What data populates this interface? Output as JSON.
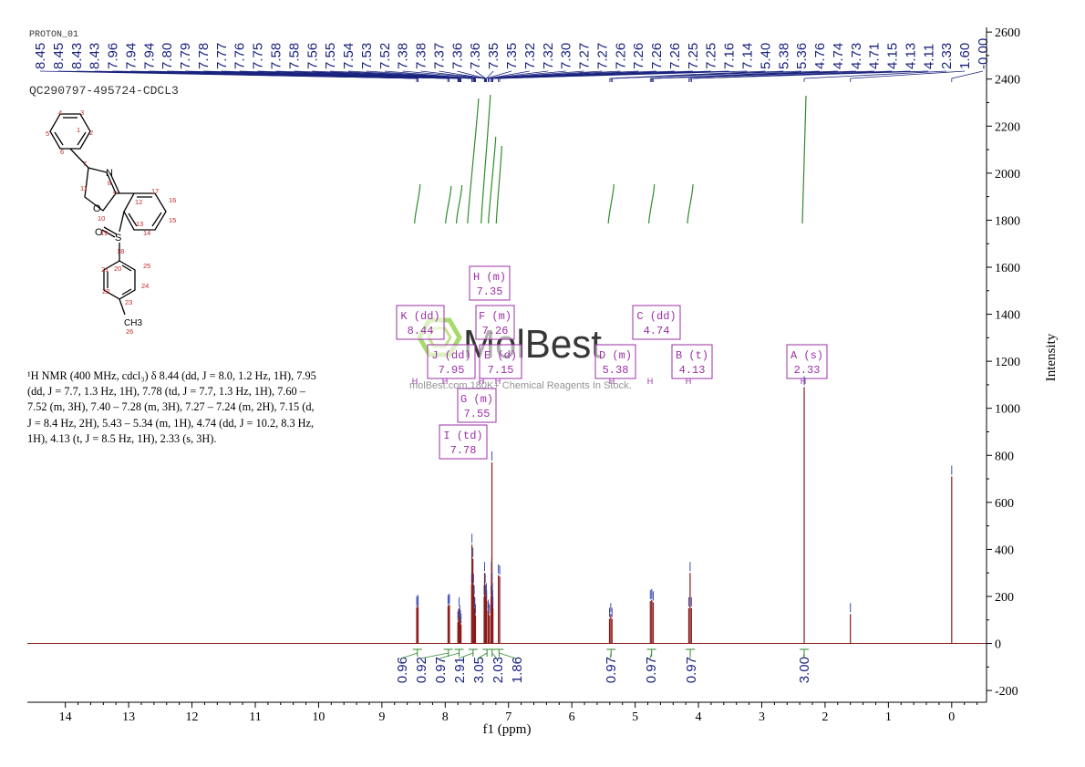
{
  "header": {
    "experiment": "PROTON_01",
    "sample_id": "QC290797-495724-CDCL3"
  },
  "watermark": {
    "brand": "MolBest",
    "tagline": "molBest.com,180K+ Chemical Reagents In Stock."
  },
  "nmr_description": {
    "text": "¹H NMR (400 MHz, cdcl₃) δ 8.44 (dd, J = 8.0, 1.2 Hz, 1H), 7.95 (dd, J = 7.7, 1.3 Hz, 1H), 7.78 (td, J = 7.7, 1.3 Hz, 1H), 7.60 – 7.52 (m, 3H), 7.40 – 7.28 (m, 3H), 7.27 – 7.24 (m, 2H), 7.15 (d, J = 8.4 Hz, 2H), 5.43 – 5.34 (m, 1H), 4.74 (dd, J = 10.2, 8.3 Hz, 1H), 4.13 (t, J = 8.5 Hz, 1H), 2.33 (s, 3H)."
  },
  "structure": {
    "atom_labels": [
      "1",
      "2",
      "3",
      "4",
      "5",
      "6",
      "7",
      "8",
      "9",
      "10",
      "11",
      "12",
      "13",
      "14",
      "15",
      "16",
      "17",
      "18",
      "19",
      "20",
      "21",
      "22",
      "23",
      "24",
      "25",
      "26"
    ],
    "hetero_labels": [
      "N",
      "O",
      "O",
      "S",
      "CH3"
    ]
  },
  "peak_labels": [
    "8.45",
    "8.45",
    "8.43",
    "8.43",
    "7.96",
    "7.94",
    "7.94",
    "7.80",
    "7.79",
    "7.78",
    "7.77",
    "7.76",
    "7.75",
    "7.58",
    "7.58",
    "7.56",
    "7.55",
    "7.54",
    "7.53",
    "7.52",
    "7.38",
    "7.38",
    "7.37",
    "7.36",
    "7.36",
    "7.35",
    "7.35",
    "7.32",
    "7.32",
    "7.30",
    "7.27",
    "7.27",
    "7.26",
    "7.26",
    "7.26",
    "7.26",
    "7.25",
    "7.25",
    "7.16",
    "7.14",
    "5.40",
    "5.38",
    "5.36",
    "4.76",
    "4.74",
    "4.73",
    "4.71",
    "4.15",
    "4.13",
    "4.11",
    "2.33",
    "1.60",
    "-0.00"
  ],
  "multiplets": [
    {
      "letter": "K",
      "mult": "dd",
      "shift": "8.44"
    },
    {
      "letter": "J",
      "mult": "dd",
      "shift": "7.95"
    },
    {
      "letter": "I",
      "mult": "td",
      "shift": "7.78"
    },
    {
      "letter": "G",
      "mult": "m",
      "shift": "7.55"
    },
    {
      "letter": "H",
      "mult": "m",
      "shift": "7.35"
    },
    {
      "letter": "F",
      "mult": "m",
      "shift": "7.26"
    },
    {
      "letter": "E",
      "mult": "d",
      "shift": "7.15"
    },
    {
      "letter": "D",
      "mult": "m",
      "shift": "5.38"
    },
    {
      "letter": "C",
      "mult": "dd",
      "shift": "4.74"
    },
    {
      "letter": "B",
      "mult": "t",
      "shift": "4.13"
    },
    {
      "letter": "A",
      "mult": "s",
      "shift": "2.33"
    }
  ],
  "integrals": [
    {
      "center": 8.44,
      "value": "0.96"
    },
    {
      "center": 7.95,
      "value": "0.92"
    },
    {
      "center": 7.78,
      "value": "0.97"
    },
    {
      "center": 7.56,
      "value": "2.91"
    },
    {
      "center": 7.34,
      "value": "3.05"
    },
    {
      "center": 7.26,
      "value": "2.03"
    },
    {
      "center": 7.15,
      "value": "1.86"
    },
    {
      "center": 5.38,
      "value": "0.97"
    },
    {
      "center": 4.74,
      "value": "0.97"
    },
    {
      "center": 4.13,
      "value": "0.97"
    },
    {
      "center": 2.33,
      "value": "3.00"
    }
  ],
  "chart_data": {
    "type": "line",
    "xlabel": "f1 (ppm)",
    "ylabel": "Intensity",
    "xlim": [
      14.6,
      -0.55
    ],
    "ylim": [
      -250,
      2620
    ],
    "x_ticks": [
      "14",
      "13",
      "12",
      "11",
      "10",
      "9",
      "8",
      "7",
      "6",
      "5",
      "4",
      "3",
      "2",
      "1",
      "0"
    ],
    "y_ticks": [
      "-200",
      "0",
      "200",
      "400",
      "600",
      "800",
      "1000",
      "1200",
      "1400",
      "1600",
      "1800",
      "2000",
      "2200",
      "2400",
      "2600"
    ],
    "spectrum_color": "#8b1a1a",
    "annotation_color": "#9b2fa6",
    "integral_color": "#2e8b2e",
    "label_color": "#1a237e",
    "peaks": [
      {
        "shift": 8.451,
        "height": 150
      },
      {
        "shift": 8.448,
        "height": 155
      },
      {
        "shift": 8.431,
        "height": 160
      },
      {
        "shift": 8.428,
        "height": 150
      },
      {
        "shift": 7.955,
        "height": 160
      },
      {
        "shift": 7.952,
        "height": 155
      },
      {
        "shift": 7.936,
        "height": 165
      },
      {
        "shift": 7.933,
        "height": 160
      },
      {
        "shift": 7.8,
        "height": 90
      },
      {
        "shift": 7.79,
        "height": 100
      },
      {
        "shift": 7.78,
        "height": 150
      },
      {
        "shift": 7.77,
        "height": 115
      },
      {
        "shift": 7.76,
        "height": 95
      },
      {
        "shift": 7.75,
        "height": 80
      },
      {
        "shift": 7.583,
        "height": 250
      },
      {
        "shift": 7.578,
        "height": 420
      },
      {
        "shift": 7.563,
        "height": 360
      },
      {
        "shift": 7.552,
        "height": 250
      },
      {
        "shift": 7.542,
        "height": 200
      },
      {
        "shift": 7.532,
        "height": 150
      },
      {
        "shift": 7.522,
        "height": 120
      },
      {
        "shift": 7.385,
        "height": 200
      },
      {
        "shift": 7.378,
        "height": 300
      },
      {
        "shift": 7.368,
        "height": 250
      },
      {
        "shift": 7.362,
        "height": 200
      },
      {
        "shift": 7.356,
        "height": 200
      },
      {
        "shift": 7.35,
        "height": 210
      },
      {
        "shift": 7.346,
        "height": 180
      },
      {
        "shift": 7.322,
        "height": 140
      },
      {
        "shift": 7.316,
        "height": 130
      },
      {
        "shift": 7.3,
        "height": 120
      },
      {
        "shift": 7.275,
        "height": 200
      },
      {
        "shift": 7.27,
        "height": 300
      },
      {
        "shift": 7.265,
        "height": 320
      },
      {
        "shift": 7.262,
        "height": 770
      },
      {
        "shift": 7.258,
        "height": 260
      },
      {
        "shift": 7.254,
        "height": 210
      },
      {
        "shift": 7.25,
        "height": 180
      },
      {
        "shift": 7.246,
        "height": 150
      },
      {
        "shift": 7.16,
        "height": 290
      },
      {
        "shift": 7.139,
        "height": 285
      },
      {
        "shift": 5.405,
        "height": 105
      },
      {
        "shift": 5.385,
        "height": 125
      },
      {
        "shift": 5.365,
        "height": 105
      },
      {
        "shift": 4.76,
        "height": 180
      },
      {
        "shift": 4.739,
        "height": 185
      },
      {
        "shift": 4.735,
        "height": 180
      },
      {
        "shift": 4.714,
        "height": 175
      },
      {
        "shift": 4.153,
        "height": 150
      },
      {
        "shift": 4.132,
        "height": 300
      },
      {
        "shift": 4.111,
        "height": 150
      },
      {
        "shift": 2.33,
        "height": 1090
      },
      {
        "shift": 1.6,
        "height": 125
      },
      {
        "shift": 0.0,
        "height": 710
      }
    ]
  }
}
